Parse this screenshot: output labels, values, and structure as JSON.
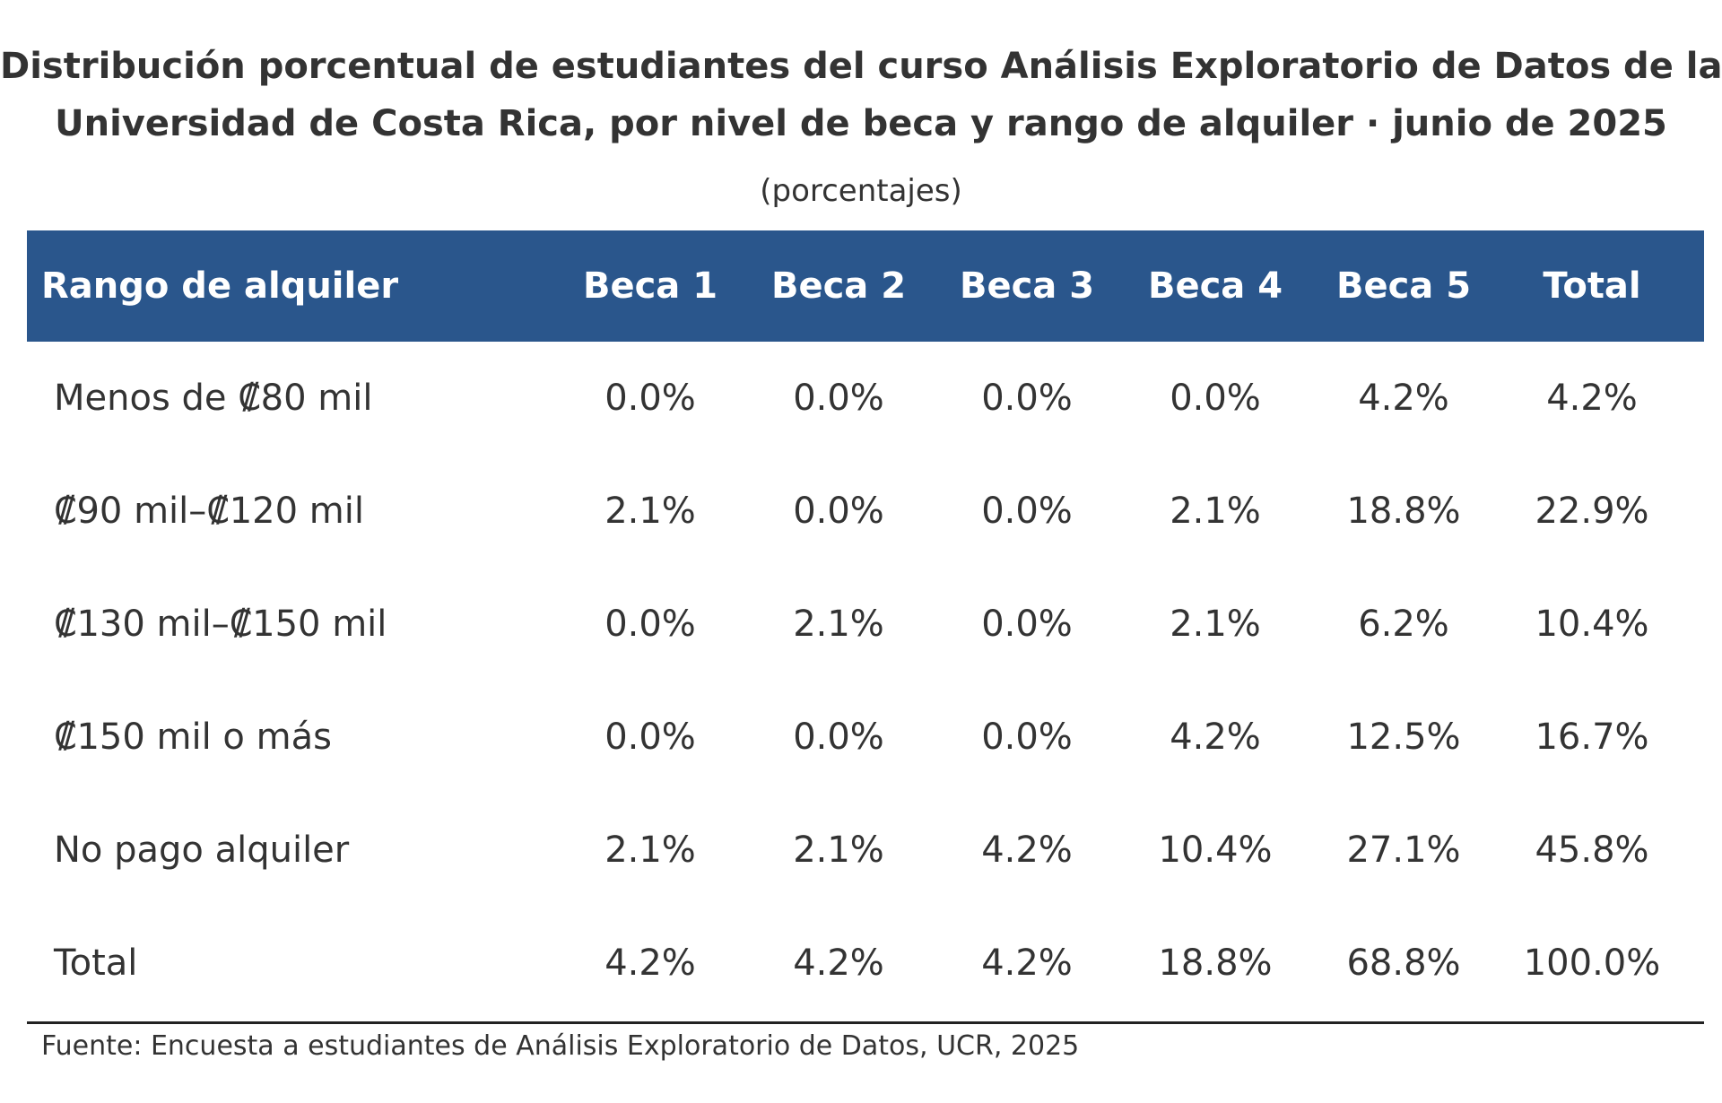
{
  "chart_data": {
    "type": "table",
    "title_lines": [
      "Distribución porcentual de estudiantes del curso Análisis Exploratorio de Datos de la",
      "Universidad de Costa Rica, por nivel de beca y rango de alquiler · junio de 2025"
    ],
    "subtitle": "(porcentajes)",
    "columns": [
      "Rango de alquiler",
      "Beca 1",
      "Beca 2",
      "Beca 3",
      "Beca 4",
      "Beca 5",
      "Total"
    ],
    "rows": [
      {
        "label": "Menos de ₡80 mil",
        "values": [
          "0.0%",
          "0.0%",
          "0.0%",
          "0.0%",
          "4.2%",
          "4.2%"
        ]
      },
      {
        "label": "₡90 mil–₡120 mil",
        "values": [
          "2.1%",
          "0.0%",
          "0.0%",
          "2.1%",
          "18.8%",
          "22.9%"
        ]
      },
      {
        "label": "₡130 mil–₡150 mil",
        "values": [
          "0.0%",
          "2.1%",
          "0.0%",
          "2.1%",
          "6.2%",
          "10.4%"
        ]
      },
      {
        "label": "₡150 mil o más",
        "values": [
          "0.0%",
          "0.0%",
          "0.0%",
          "4.2%",
          "12.5%",
          "16.7%"
        ]
      },
      {
        "label": "No pago alquiler",
        "values": [
          "2.1%",
          "2.1%",
          "4.2%",
          "10.4%",
          "27.1%",
          "45.8%"
        ]
      },
      {
        "label": "Total",
        "values": [
          "4.2%",
          "4.2%",
          "4.2%",
          "18.8%",
          "68.8%",
          "100.0%"
        ]
      }
    ],
    "source": "Fuente: Encuesta a estudiantes de Análisis Exploratorio de Datos, UCR, 2025",
    "colors": {
      "header_background": "#2a568c",
      "header_text": "#ffffff",
      "body_text": "#333333",
      "rule": "#222222"
    }
  }
}
